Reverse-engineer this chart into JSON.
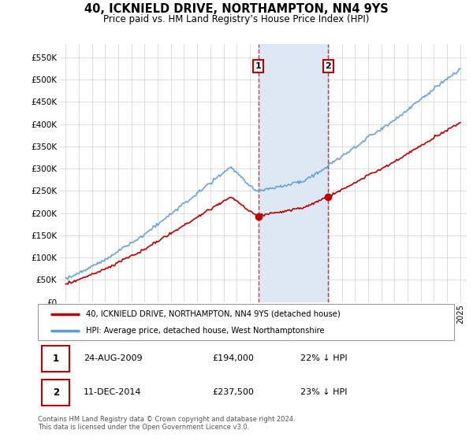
{
  "title": "40, ICKNIELD DRIVE, NORTHAMPTON, NN4 9YS",
  "subtitle": "Price paid vs. HM Land Registry’s House Price Index (HPI)",
  "ytick_vals": [
    0,
    50000,
    100000,
    150000,
    200000,
    250000,
    300000,
    350000,
    400000,
    450000,
    500000,
    550000
  ],
  "ylabel_ticks": [
    "£0",
    "£50K",
    "£100K",
    "£150K",
    "£200K",
    "£250K",
    "£300K",
    "£350K",
    "£400K",
    "£450K",
    "£500K",
    "£550K"
  ],
  "ylim": [
    0,
    580000
  ],
  "transaction1_year": 2009.65,
  "transaction1_price": 194000,
  "transaction2_year": 2014.95,
  "transaction2_price": 237500,
  "legend_property": "40, ICKNIELD DRIVE, NORTHAMPTON, NN4 9YS (detached house)",
  "legend_hpi": "HPI: Average price, detached house, West Northamptonshire",
  "footnote": "Contains HM Land Registry data © Crown copyright and database right 2024.\nThis data is licensed under the Open Government Licence v3.0.",
  "table": [
    {
      "num": "1",
      "date": "24-AUG-2009",
      "price": "£194,000",
      "pct": "22% ↓ HPI"
    },
    {
      "num": "2",
      "date": "11-DEC-2014",
      "price": "£237,500",
      "pct": "23% ↓ HPI"
    }
  ],
  "hpi_color": "#5b9bd5",
  "property_color": "#c00000",
  "shade_color": "#dce9f5",
  "grid_color": "#d0d0d0"
}
